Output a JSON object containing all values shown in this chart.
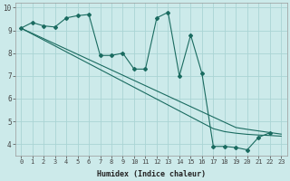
{
  "xlabel": "Humidex (Indice chaleur)",
  "bg_color": "#cceaea",
  "line_color": "#1a6b60",
  "grid_color": "#aad4d4",
  "x_data": [
    0,
    1,
    2,
    3,
    4,
    5,
    6,
    7,
    8,
    9,
    10,
    11,
    12,
    13,
    14,
    15,
    16,
    17,
    18,
    19,
    20,
    21,
    22,
    23
  ],
  "y_wavy": [
    9.1,
    9.35,
    9.2,
    9.15,
    9.55,
    9.65,
    9.7,
    7.9,
    7.9,
    8.0,
    7.3,
    7.3,
    9.55,
    9.8,
    7.0,
    8.8,
    7.1,
    3.9,
    3.9,
    3.85,
    3.75,
    4.3,
    4.5,
    null
  ],
  "y_line1": [
    9.1,
    8.87,
    8.64,
    8.41,
    8.18,
    7.95,
    7.72,
    7.49,
    7.26,
    7.03,
    6.8,
    6.57,
    6.34,
    6.11,
    5.88,
    5.65,
    5.42,
    5.19,
    4.96,
    4.73,
    4.65,
    4.58,
    4.51,
    4.44
  ],
  "y_line2": [
    9.1,
    8.84,
    8.58,
    8.32,
    8.06,
    7.8,
    7.54,
    7.28,
    7.02,
    6.76,
    6.5,
    6.24,
    5.98,
    5.72,
    5.46,
    5.2,
    4.94,
    4.68,
    4.55,
    4.48,
    4.43,
    4.4,
    4.38,
    4.35
  ],
  "ylim": [
    3.5,
    10.2
  ],
  "xlim": [
    -0.5,
    23.5
  ],
  "yticks": [
    4,
    5,
    6,
    7,
    8,
    9,
    10
  ],
  "xticks": [
    0,
    1,
    2,
    3,
    4,
    5,
    6,
    7,
    8,
    9,
    10,
    11,
    12,
    13,
    14,
    15,
    16,
    17,
    18,
    19,
    20,
    21,
    22,
    23
  ],
  "xlabel_fontsize": 6.0,
  "tick_fontsize_x": 5.0,
  "tick_fontsize_y": 5.5
}
